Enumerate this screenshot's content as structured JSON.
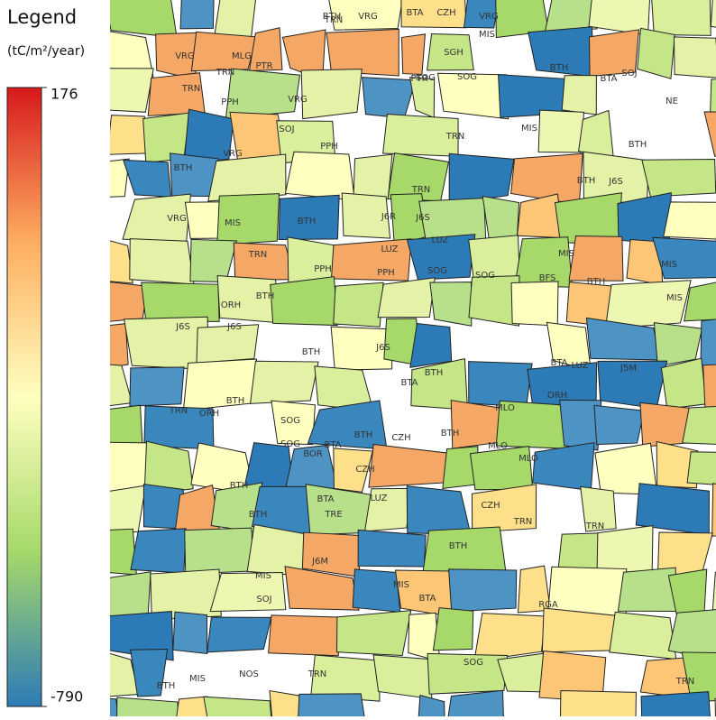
{
  "legend": {
    "title": "Legend",
    "unit": "(tC/m²/year)",
    "clim": [
      -790,
      176
    ],
    "ticks": [
      -790,
      176
    ]
  },
  "parcels": [
    "VRG",
    "MLG",
    "TRN",
    "TRN",
    "PTR",
    "BTH",
    "TRN",
    "VRG",
    "BTA",
    "CZH",
    "VRG",
    "MIS",
    "SGH",
    "SOG",
    "SOG",
    "PTR",
    "VRG",
    "PPH",
    "SOJ",
    "VRG",
    "PPH",
    "TRN",
    "MIS",
    "BTH",
    "BTA",
    "SOJ",
    "NE",
    "BTH",
    "BTH",
    "J6S",
    "TRN",
    "J6R",
    "J6S",
    "LUZ",
    "LUZ",
    "PPH",
    "PPH",
    "SOG",
    "SOG",
    "MIS",
    "BFS",
    "BTH",
    "MIS",
    "MIS",
    "BTH",
    "J6S",
    "BTH",
    "BTA",
    "MLO",
    "ORH",
    "J5M",
    "BTA",
    "LUZ",
    "BTH",
    "CZH",
    "BTH",
    "MLO",
    "MLO",
    "CZH",
    "LUZ",
    "TRE",
    "BTA",
    "CZH",
    "TRN",
    "TRN",
    "MIS",
    "SOJ",
    "J6M",
    "BTH",
    "MIS",
    "BTA",
    "RGA",
    "TRN",
    "BTH",
    "MIS",
    "NOS",
    "SOG",
    "TRN",
    "BTH",
    "BTH",
    "TRN",
    "ORH",
    "BTH",
    "SOG",
    "SOG",
    "BOR",
    "BTA",
    "J6S",
    "ORH",
    "MIS",
    "BTH",
    "BTH",
    "TRN",
    "BTH",
    "VRG",
    "J6S"
  ]
}
